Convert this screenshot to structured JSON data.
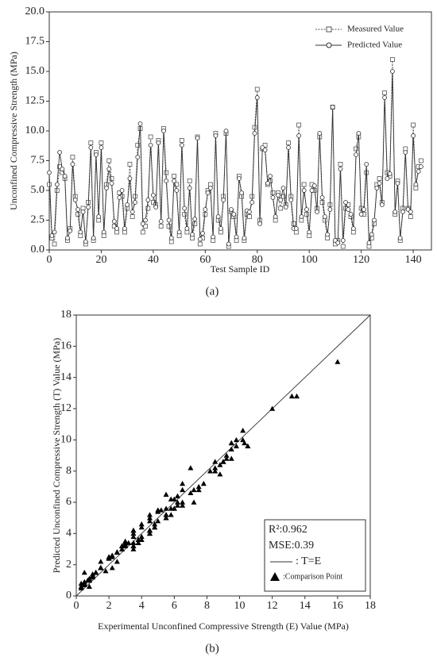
{
  "chart_data": [
    {
      "type": "line",
      "xlabel": "Test Sample ID",
      "ylabel": "Unconfined Compressive Strength  (MPa)",
      "caption": "(a)",
      "xlim": [
        0,
        147
      ],
      "xticks": [
        0,
        20,
        40,
        60,
        80,
        100,
        120,
        140
      ],
      "ylim": [
        0,
        20
      ],
      "yticks": [
        {
          "value": 0,
          "label": "0.0"
        },
        {
          "value": 2.5,
          "label": "2.5"
        },
        {
          "value": 5,
          "label": "5.0"
        },
        {
          "value": 7.5,
          "label": "7.5"
        },
        {
          "value": 10,
          "label": "10.0"
        },
        {
          "value": 12.5,
          "label": "12.5"
        },
        {
          "value": 15,
          "label": "15.0"
        },
        {
          "value": 17.5,
          "label": "17.5"
        },
        {
          "value": 20,
          "label": "20.0"
        }
      ],
      "series": [
        {
          "name": "Measured Value",
          "color": "#555555",
          "marker": "square",
          "dashed": true,
          "values": [
            5.5,
            1.0,
            0.5,
            5.0,
            7.0,
            6.5,
            6.0,
            0.8,
            1.8,
            7.8,
            4.5,
            3.0,
            1.2,
            3.5,
            0.5,
            4.0,
            9.0,
            0.8,
            8.2,
            2.5,
            9.0,
            1.2,
            5.5,
            7.5,
            6.0,
            2.0,
            1.5,
            4.8,
            4.5,
            1.5,
            3.5,
            7.2,
            2.8,
            4.5,
            8.8,
            10.2,
            1.5,
            2.0,
            3.5,
            9.5,
            4.0,
            3.8,
            9.2,
            2.0,
            10.2,
            6.5,
            2.0,
            0.7,
            6.2,
            5.5,
            1.2,
            9.2,
            3.0,
            1.5,
            5.8,
            1.0,
            2.2,
            9.5,
            0.5,
            1.0,
            3.0,
            5.0,
            5.5,
            0.8,
            9.8,
            2.5,
            1.5,
            4.5,
            9.8,
            0.3,
            3.2,
            2.8,
            0.8,
            6.2,
            4.5,
            0.8,
            3.0,
            2.8,
            4.5,
            10.3,
            13.5,
            2.5,
            8.5,
            8.8,
            5.5,
            5.8,
            4.8,
            2.5,
            4.8,
            3.5,
            4.5,
            3.8,
            9.0,
            4.5,
            2.2,
            1.5,
            10.5,
            2.5,
            5.5,
            3.0,
            1.2,
            5.5,
            5.0,
            3.5,
            9.5,
            4.0,
            2.5,
            1.0,
            3.8,
            12.0,
            0.5,
            0.8,
            7.2,
            0.3,
            3.5,
            3.8,
            2.8,
            1.5,
            8.5,
            9.5,
            3.5,
            3.0,
            6.5,
            0.3,
            1.0,
            2.2,
            5.5,
            6.0,
            4.0,
            13.2,
            6.5,
            6.2,
            16.0,
            3.0,
            5.8,
            0.8,
            3.5,
            8.5,
            3.5,
            2.8,
            10.5,
            5.2,
            7.0,
            7.5
          ]
        },
        {
          "name": "Predicted Value",
          "color": "#333333",
          "marker": "circle",
          "dashed": false,
          "values": [
            6.5,
            1.2,
            1.5,
            5.5,
            8.2,
            6.8,
            6.2,
            1.0,
            1.6,
            7.2,
            4.2,
            3.4,
            1.5,
            3.2,
            0.7,
            3.6,
            8.6,
            1.0,
            8.0,
            2.8,
            8.6,
            1.5,
            5.2,
            6.8,
            5.6,
            2.4,
            1.8,
            4.4,
            5.0,
            1.8,
            3.8,
            6.0,
            3.2,
            4.0,
            7.8,
            10.6,
            2.2,
            2.5,
            4.2,
            8.8,
            4.6,
            3.6,
            9.0,
            2.4,
            10.0,
            5.8,
            2.5,
            1.0,
            5.8,
            5.0,
            1.5,
            8.8,
            3.5,
            1.8,
            5.2,
            1.3,
            2.6,
            9.4,
            0.9,
            1.4,
            3.4,
            4.8,
            5.2,
            1.1,
            9.6,
            2.8,
            1.8,
            4.2,
            10.0,
            0.5,
            3.4,
            3.0,
            1.1,
            6.0,
            4.8,
            1.0,
            3.3,
            3.2,
            4.0,
            9.8,
            12.8,
            2.2,
            8.6,
            8.4,
            5.6,
            6.2,
            4.4,
            2.8,
            4.6,
            4.2,
            5.2,
            3.6,
            8.6,
            4.2,
            1.8,
            1.8,
            9.6,
            2.8,
            5.0,
            3.4,
            1.5,
            5.0,
            5.4,
            3.2,
            9.8,
            4.4,
            2.8,
            1.3,
            3.4,
            12.0,
            0.8,
            0.6,
            6.8,
            0.8,
            4.0,
            3.4,
            3.0,
            1.8,
            8.0,
            9.8,
            3.0,
            3.4,
            7.2,
            0.6,
            1.3,
            2.5,
            5.2,
            5.6,
            3.8,
            12.8,
            6.0,
            6.4,
            15.0,
            3.2,
            5.6,
            1.0,
            3.2,
            8.2,
            3.4,
            3.2,
            9.6,
            5.5,
            6.6,
            7.0
          ]
        }
      ]
    },
    {
      "type": "scatter",
      "xlabel": "Experimental Unconfined Compressive Strength (E) Value (MPa)",
      "ylabel": "Predicted Unconfined Compressive Strength (T) Value (MPa)",
      "caption": "(b)",
      "xlim": [
        0,
        18
      ],
      "xticks": [
        0,
        2,
        4,
        6,
        8,
        10,
        12,
        14,
        16,
        18
      ],
      "ylim": [
        0,
        18
      ],
      "yticks": [
        0,
        2,
        4,
        6,
        8,
        10,
        12,
        14,
        16,
        18
      ],
      "color": "#000000",
      "annotations": [
        "R²:0.962",
        "MSE:0.39",
        ": T=E",
        ":Comparison Point"
      ]
    }
  ]
}
